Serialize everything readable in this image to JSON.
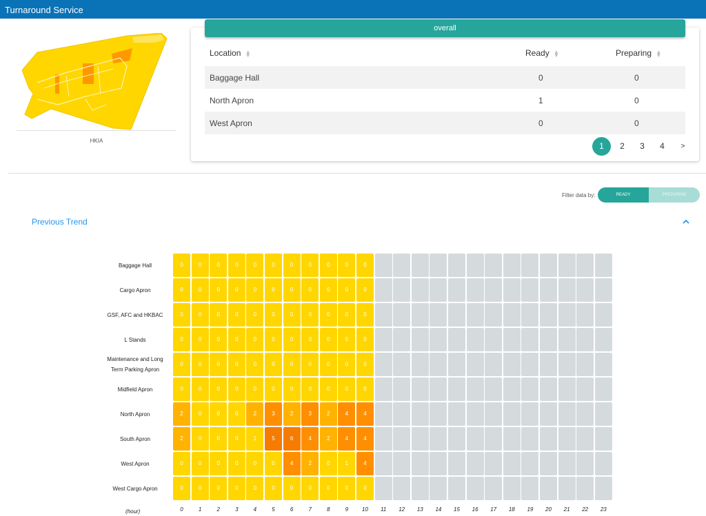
{
  "app": {
    "title": "Turnaround Service"
  },
  "map": {
    "caption": "HKIA",
    "fill_color": "#ffd600",
    "accent_color": "#ff9800"
  },
  "summary": {
    "header": "overall",
    "columns": [
      "Location",
      "Ready",
      "Preparing"
    ],
    "rows": [
      {
        "location": "Baggage Hall",
        "ready": "0",
        "preparing": "0"
      },
      {
        "location": "North Apron",
        "ready": "1",
        "preparing": "0"
      },
      {
        "location": "West Apron",
        "ready": "0",
        "preparing": "0"
      }
    ],
    "pagination": {
      "pages": [
        "1",
        "2",
        "3",
        "4"
      ],
      "next": ">",
      "active": "1"
    }
  },
  "filter": {
    "label": "Filter data by:",
    "options": [
      "READY",
      "PREPARING"
    ],
    "selected": "READY"
  },
  "trend": {
    "title": "Previous Trend",
    "collapse_icon": "chevron-up-icon"
  },
  "heatmap": {
    "x_unit": "(hour)",
    "hours": [
      "0",
      "1",
      "2",
      "3",
      "4",
      "5",
      "6",
      "7",
      "8",
      "9",
      "10",
      "11",
      "12",
      "13",
      "14",
      "15",
      "16",
      "17",
      "18",
      "19",
      "20",
      "21",
      "22",
      "23"
    ],
    "rows": [
      {
        "label": "Baggage Hall",
        "values": [
          0,
          0,
          0,
          0,
          0,
          0,
          0,
          0,
          0,
          0,
          0
        ]
      },
      {
        "label": "Cargo Apron",
        "values": [
          0,
          0,
          0,
          0,
          0,
          0,
          0,
          0,
          0,
          0,
          0
        ]
      },
      {
        "label": "GSF, AFC and HKBAC",
        "values": [
          0,
          0,
          0,
          0,
          0,
          0,
          0,
          0,
          0,
          0,
          0
        ]
      },
      {
        "label": "L Stands",
        "values": [
          0,
          0,
          0,
          0,
          0,
          0,
          0,
          0,
          0,
          0,
          0
        ]
      },
      {
        "label": "Maintenance and Long Term Parking Apron",
        "values": [
          0,
          0,
          0,
          0,
          0,
          0,
          0,
          0,
          0,
          0,
          0
        ]
      },
      {
        "label": "Midfield Apron",
        "values": [
          0,
          0,
          0,
          0,
          0,
          0,
          0,
          0,
          0,
          0,
          0
        ]
      },
      {
        "label": "North Apron",
        "values": [
          2,
          0,
          0,
          0,
          2,
          3,
          2,
          3,
          2,
          4,
          4
        ]
      },
      {
        "label": "South Apron",
        "values": [
          2,
          0,
          0,
          0,
          1,
          5,
          6,
          4,
          2,
          4,
          4
        ]
      },
      {
        "label": "West Apron",
        "values": [
          0,
          0,
          0,
          0,
          0,
          0,
          4,
          2,
          0,
          1,
          4
        ]
      },
      {
        "label": "West Cargo Apron",
        "values": [
          0,
          0,
          0,
          0,
          0,
          0,
          0,
          0,
          0,
          0,
          0
        ]
      }
    ],
    "colors": {
      "empty": "#d5dadd",
      "low": "#ffd600",
      "mid": "#ffb300",
      "high": "#ff8f00",
      "max": "#f57c00"
    }
  }
}
